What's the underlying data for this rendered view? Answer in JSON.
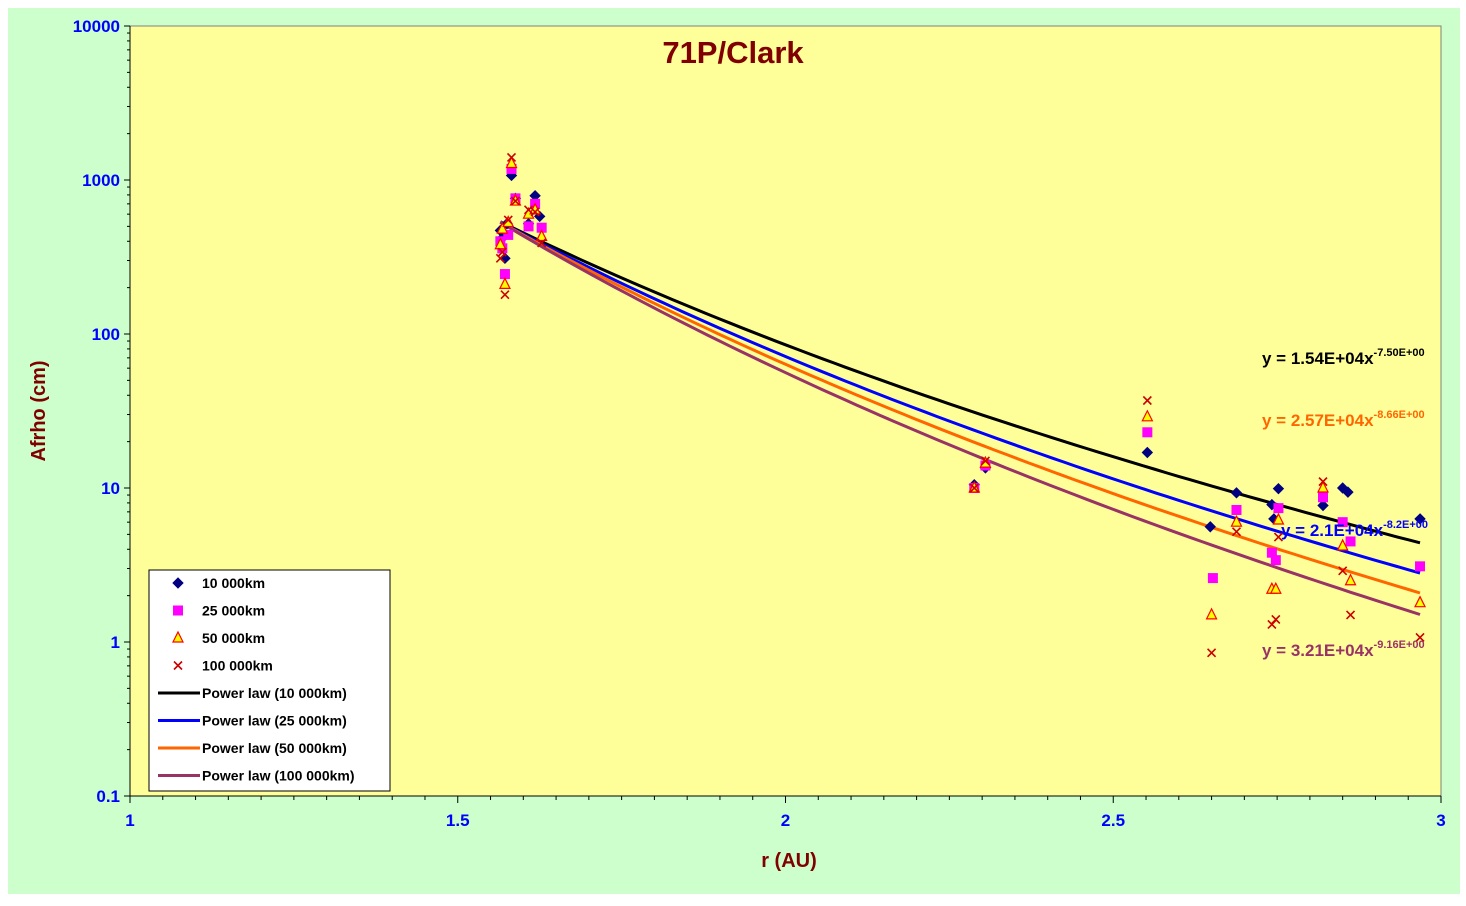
{
  "chart_data": {
    "type": "scatter",
    "title": "71P/Clark",
    "xlabel": "r (AU)",
    "ylabel": "Afrho (cm)",
    "xlim": [
      1,
      3
    ],
    "ylim": [
      0.1,
      10000
    ],
    "y_scale": "log",
    "x_ticks": [
      "1",
      "1.5",
      "2",
      "2.5",
      "3"
    ],
    "y_ticks": [
      "0.1",
      "1",
      "10",
      "100",
      "1000",
      "10000"
    ],
    "x_minor_step": 0.05,
    "grid": false,
    "legend_position": "bottom-left",
    "colors": {
      "outer_background": "#CCFFCC",
      "plot_background": "#FFFF99",
      "title": "#800000",
      "axis_label": "#800000",
      "tick_label": "#0000FF"
    },
    "series": [
      {
        "name": "10 000km",
        "marker": "diamond",
        "color": "#000080",
        "points": [
          [
            1.565,
            470
          ],
          [
            1.568,
            420
          ],
          [
            1.572,
            310
          ],
          [
            1.575,
            520
          ],
          [
            1.582,
            1070
          ],
          [
            1.588,
            760
          ],
          [
            1.608,
            520
          ],
          [
            1.618,
            790
          ],
          [
            1.625,
            580
          ],
          [
            2.288,
            10.5
          ],
          [
            2.305,
            13.5
          ],
          [
            2.552,
            17
          ],
          [
            2.648,
            5.6
          ],
          [
            2.688,
            9.3
          ],
          [
            2.742,
            7.8
          ],
          [
            2.745,
            6.3
          ],
          [
            2.752,
            9.9
          ],
          [
            2.82,
            7.7
          ],
          [
            2.85,
            10
          ],
          [
            2.858,
            9.4
          ],
          [
            2.968,
            6.3
          ]
        ]
      },
      {
        "name": "25 000km",
        "marker": "square",
        "color": "#FF00FF",
        "points": [
          [
            1.565,
            400
          ],
          [
            1.568,
            360
          ],
          [
            1.572,
            245
          ],
          [
            1.577,
            440
          ],
          [
            1.582,
            1180
          ],
          [
            1.588,
            760
          ],
          [
            1.608,
            500
          ],
          [
            1.618,
            700
          ],
          [
            1.628,
            490
          ],
          [
            2.288,
            10
          ],
          [
            2.305,
            14
          ],
          [
            2.552,
            23
          ],
          [
            2.652,
            2.6
          ],
          [
            2.688,
            7.2
          ],
          [
            2.742,
            3.8
          ],
          [
            2.748,
            3.4
          ],
          [
            2.752,
            7.4
          ],
          [
            2.82,
            8.7
          ],
          [
            2.85,
            6
          ],
          [
            2.862,
            4.5
          ],
          [
            2.968,
            3.1
          ]
        ]
      },
      {
        "name": "50 000km",
        "marker": "triangle",
        "color": "#FF0000",
        "fill": "#FFFF00",
        "points": [
          [
            1.565,
            380
          ],
          [
            1.568,
            480
          ],
          [
            1.572,
            210
          ],
          [
            1.577,
            530
          ],
          [
            1.582,
            1280
          ],
          [
            1.588,
            730
          ],
          [
            1.608,
            600
          ],
          [
            1.618,
            640
          ],
          [
            1.628,
            430
          ],
          [
            2.288,
            10
          ],
          [
            2.305,
            14.5
          ],
          [
            2.552,
            29
          ],
          [
            2.65,
            1.5
          ],
          [
            2.688,
            6
          ],
          [
            2.742,
            2.2
          ],
          [
            2.748,
            2.2
          ],
          [
            2.752,
            6.2
          ],
          [
            2.82,
            10
          ],
          [
            2.85,
            4.2
          ],
          [
            2.862,
            2.5
          ],
          [
            2.968,
            1.8
          ]
        ]
      },
      {
        "name": "100 000km",
        "marker": "cross",
        "color": "#CC0000",
        "points": [
          [
            1.565,
            310
          ],
          [
            1.568,
            340
          ],
          [
            1.572,
            180
          ],
          [
            1.577,
            550
          ],
          [
            1.582,
            1400
          ],
          [
            1.588,
            730
          ],
          [
            1.608,
            640
          ],
          [
            1.618,
            620
          ],
          [
            1.628,
            390
          ],
          [
            2.288,
            10
          ],
          [
            2.305,
            15
          ],
          [
            2.552,
            37
          ],
          [
            2.65,
            0.85
          ],
          [
            2.688,
            5.2
          ],
          [
            2.742,
            1.3
          ],
          [
            2.748,
            1.4
          ],
          [
            2.752,
            4.8
          ],
          [
            2.82,
            11
          ],
          [
            2.85,
            2.9
          ],
          [
            2.862,
            1.5
          ],
          [
            2.968,
            1.07
          ]
        ]
      }
    ],
    "trendlines": [
      {
        "name": "Power law (10 000km)",
        "color": "#000000",
        "coefficient": 15400,
        "exponent": -7.5,
        "x_range": [
          1.565,
          2.968
        ],
        "equation_base": "y = 1.54E+04x",
        "equation_exponent": "-7.50E+00",
        "label_color": "#000000"
      },
      {
        "name": "Power law (25 000km)",
        "color": "#0000FF",
        "coefficient": 21000,
        "exponent": -8.2,
        "x_range": [
          1.565,
          2.968
        ],
        "equation_base": "y = 2.1E+04x",
        "equation_exponent": "-8.2E+00",
        "label_color": "#0000FF"
      },
      {
        "name": "Power law (50 000km)",
        "color": "#FF6600",
        "coefficient": 25700,
        "exponent": -8.66,
        "x_range": [
          1.565,
          2.968
        ],
        "equation_base": "y = 2.57E+04x",
        "equation_exponent": "-8.66E+00",
        "label_color": "#FF6600"
      },
      {
        "name": "Power law (100 000km)",
        "color": "#993366",
        "coefficient": 32100,
        "exponent": -9.16,
        "x_range": [
          1.565,
          2.968
        ],
        "equation_base": "y = 3.21E+04x",
        "equation_exponent": "-9.16E+00",
        "label_color": "#993366"
      }
    ],
    "legend": [
      "10 000km",
      "25 000km",
      "50 000km",
      "100 000km",
      "Power law (10 000km)",
      "Power law (25 000km)",
      "Power law (50 000km)",
      "Power law (100 000km)"
    ]
  }
}
